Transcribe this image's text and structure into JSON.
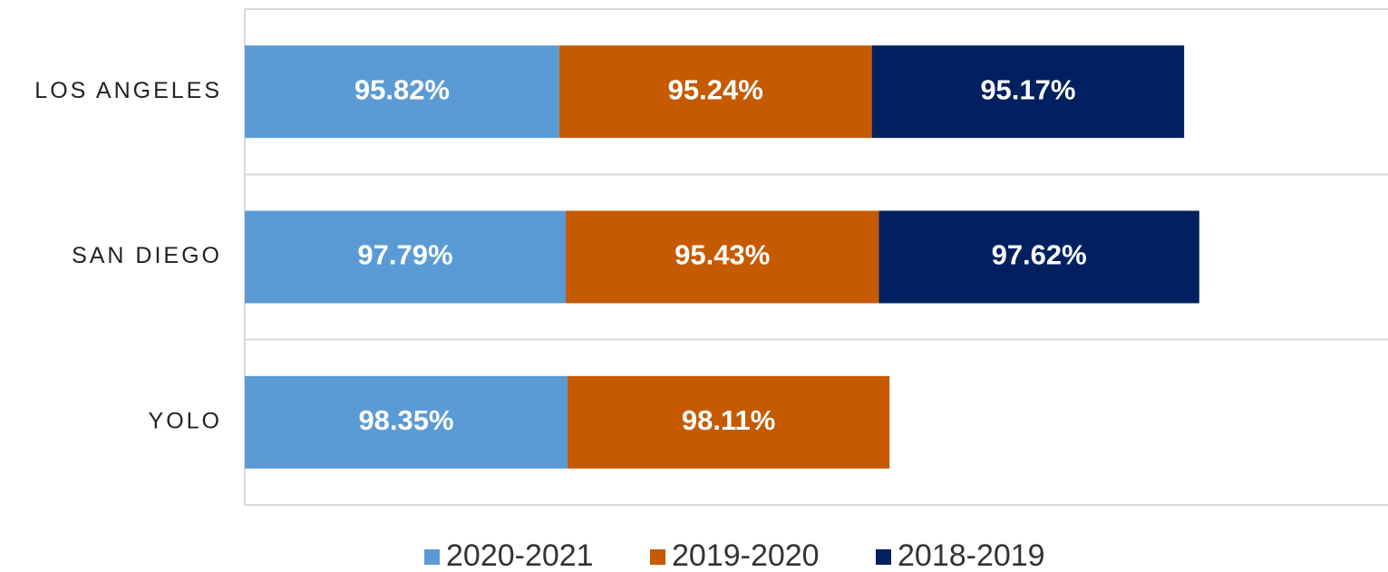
{
  "chart_data": {
    "type": "stacked_bar_horizontal",
    "categories": [
      "LOS ANGELES",
      "SAN DIEGO",
      "YOLO"
    ],
    "series": [
      {
        "name": "2020-2021",
        "color": "#5b9bd5",
        "values": [
          95.82,
          97.79,
          98.35
        ],
        "value_labels": [
          "95.82%",
          "97.79%",
          "98.35%"
        ]
      },
      {
        "name": "2019-2020",
        "color": "#c55a00",
        "values": [
          95.24,
          95.43,
          98.11
        ],
        "value_labels": [
          "95.24%",
          "95.43%",
          "98.11%"
        ]
      },
      {
        "name": "2018-2019",
        "color": "#002060",
        "values": [
          95.17,
          97.62,
          null
        ],
        "value_labels": [
          "95.17%",
          "97.62%",
          null
        ]
      }
    ],
    "legend": "bottom"
  }
}
